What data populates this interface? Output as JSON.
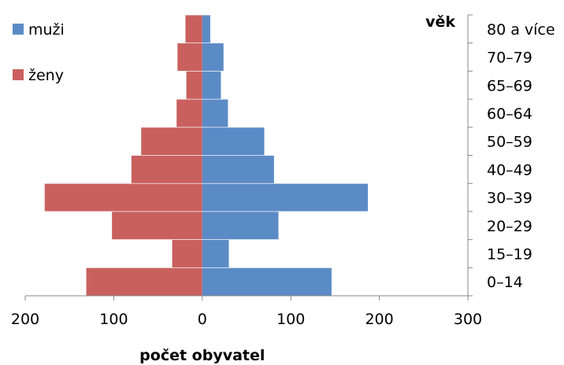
{
  "chart_data": {
    "type": "bar",
    "orientation": "horizontal",
    "subtype": "population-pyramid",
    "categories": [
      "0–14",
      "15–19",
      "20–29",
      "30–39",
      "40–49",
      "50–59",
      "60–64",
      "65–69",
      "70–79",
      "80 a více"
    ],
    "series": [
      {
        "name": "muži",
        "color": "#5B8BC5",
        "values": [
          146,
          30,
          86,
          187,
          81,
          70,
          29,
          21,
          24,
          9
        ]
      },
      {
        "name": "ženy",
        "color": "#C9605E",
        "values": [
          131,
          34,
          102,
          178,
          80,
          69,
          29,
          18,
          28,
          19
        ]
      }
    ],
    "xlim": [
      -200,
      300
    ],
    "xticks": [
      {
        "value": -200,
        "label": "200"
      },
      {
        "value": -100,
        "label": "100"
      },
      {
        "value": 0,
        "label": "0"
      },
      {
        "value": 100,
        "label": "100"
      },
      {
        "value": 200,
        "label": "200"
      },
      {
        "value": 300,
        "label": "300"
      }
    ],
    "xlabel": "počet obyvatel",
    "ylabel": "věk",
    "grid": false,
    "legend_position": "top-left"
  }
}
